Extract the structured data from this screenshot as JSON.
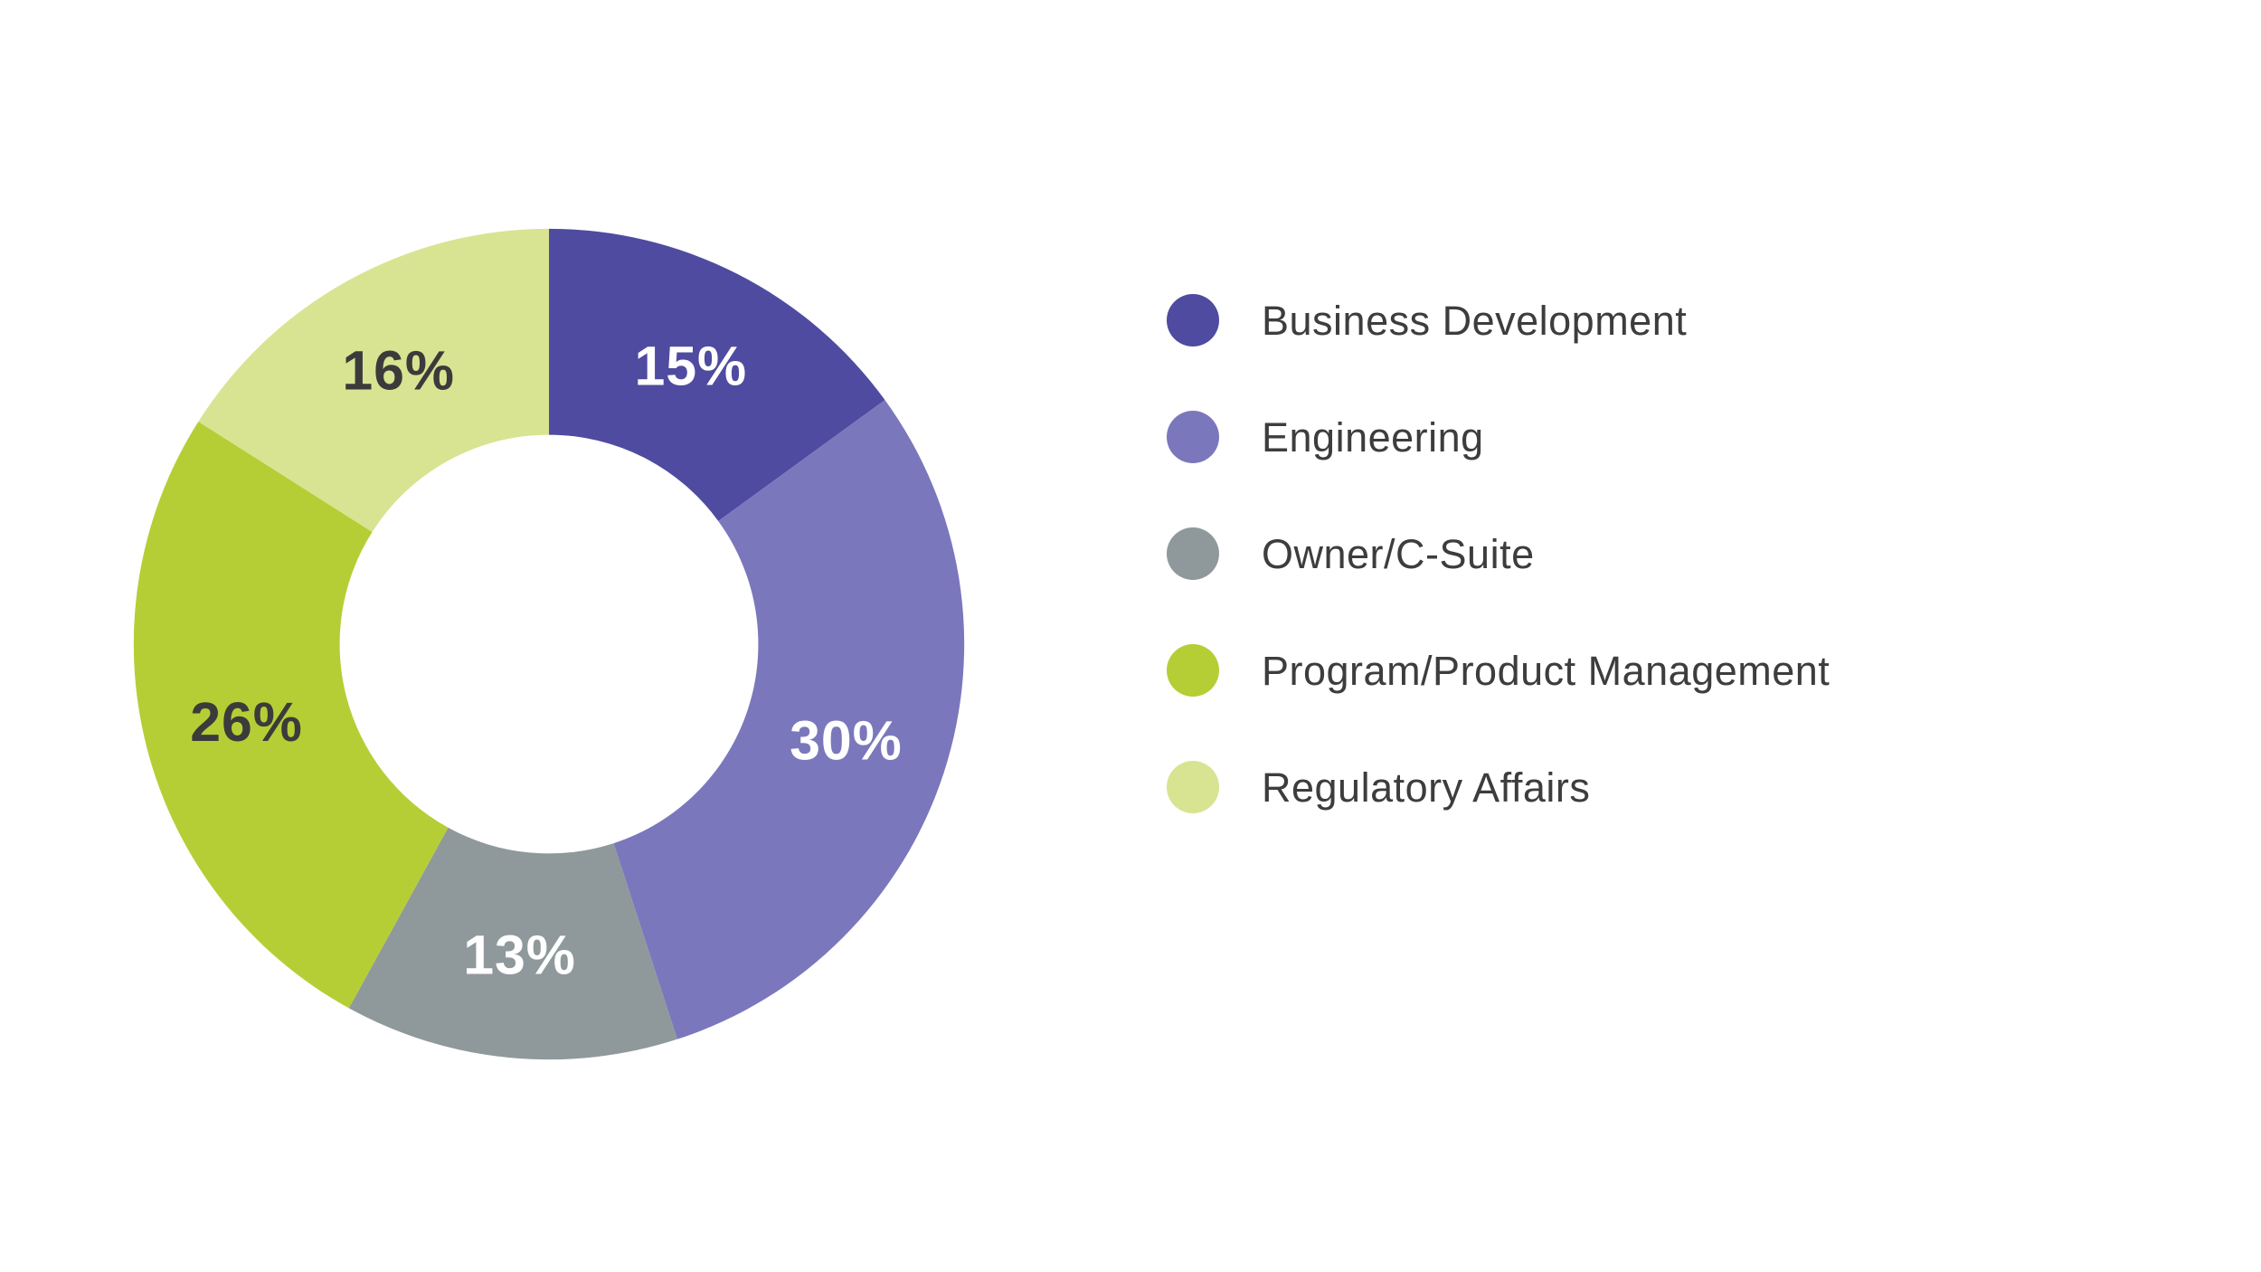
{
  "chart_data": {
    "type": "pie",
    "variant": "donut",
    "title": "",
    "legend_position": "right",
    "background": "#FFFFFF",
    "start_angle_deg": 0,
    "direction": "clockwise",
    "donut_hole_ratio": 0.505,
    "categories": [
      "Business Development",
      "Engineering",
      "Owner/C-Suite",
      "Program/Product Management",
      "Regulatory Affairs"
    ],
    "values": [
      15,
      30,
      13,
      26,
      16
    ],
    "segments": [
      {
        "label": "Business Development",
        "value": 15,
        "display": "15%",
        "color": "#4F4BA0",
        "label_color": "#FFFFFF"
      },
      {
        "label": "Engineering",
        "value": 30,
        "display": "30%",
        "color": "#7B77BC",
        "label_color": "#FFFFFF"
      },
      {
        "label": "Owner/C-Suite",
        "value": 13,
        "display": "13%",
        "color": "#8F999B",
        "label_color": "#FFFFFF"
      },
      {
        "label": "Program/Product Management",
        "value": 26,
        "display": "26%",
        "color": "#B6CE35",
        "label_color": "#3B3B3B"
      },
      {
        "label": "Regulatory Affairs",
        "value": 16,
        "display": "16%",
        "color": "#D8E491",
        "label_color": "#3B3B3B"
      }
    ]
  }
}
